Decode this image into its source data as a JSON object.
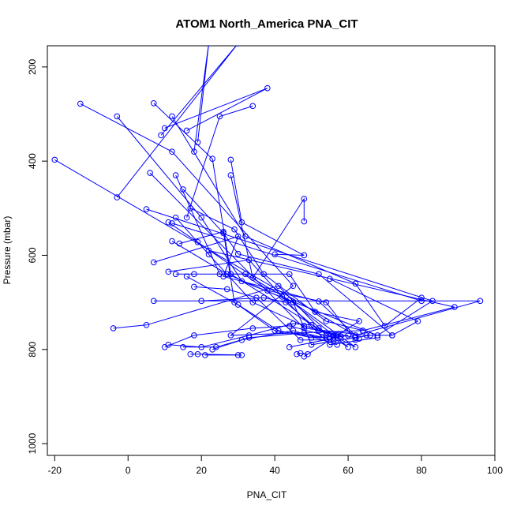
{
  "chart_data": {
    "type": "line",
    "title": "ATOM1 North_America PNA_CIT",
    "xlabel": "PNA_CIT",
    "ylabel": "Pressure (mbar)",
    "xlim": [
      -22,
      100
    ],
    "ylim": [
      1025,
      155
    ],
    "y_reversed": true,
    "xticks": [
      -20,
      0,
      20,
      40,
      60,
      80,
      100
    ],
    "yticks": [
      200,
      400,
      600,
      800,
      1000
    ],
    "grid": false,
    "series_color": "#0000ff",
    "marker": "open-circle",
    "series": [
      {
        "points": [
          [
            -20,
            397
          ],
          [
            62,
            770
          ],
          [
            96,
            697
          ],
          [
            7,
            697
          ],
          [
            80,
            697
          ],
          [
            12,
            532
          ]
        ]
      },
      {
        "points": [
          [
            -13,
            278
          ],
          [
            12,
            380
          ],
          [
            45,
            665
          ],
          [
            28,
            770
          ],
          [
            64,
            760
          ],
          [
            89,
            710
          ],
          [
            22,
            590
          ]
        ]
      },
      {
        "points": [
          [
            -3,
            305
          ],
          [
            20,
            520
          ],
          [
            31,
            655
          ],
          [
            68,
            770
          ],
          [
            83,
            697
          ],
          [
            5,
            502
          ]
        ]
      },
      {
        "points": [
          [
            -3,
            477
          ],
          [
            30,
            150
          ],
          [
            9,
            345
          ]
        ]
      },
      {
        "points": [
          [
            6,
            425
          ],
          [
            48,
            755
          ],
          [
            65,
            770
          ],
          [
            72,
            770
          ],
          [
            79,
            740
          ],
          [
            55,
            650
          ]
        ]
      },
      {
        "points": [
          [
            7,
            277
          ],
          [
            23,
            395
          ],
          [
            28,
            640
          ],
          [
            60,
            795
          ],
          [
            56,
            770
          ],
          [
            44,
            695
          ]
        ]
      },
      {
        "points": [
          [
            12,
            305
          ],
          [
            32,
            560
          ],
          [
            62,
            660
          ],
          [
            70,
            750
          ],
          [
            80,
            690
          ]
        ]
      },
      {
        "points": [
          [
            -4,
            755
          ],
          [
            5,
            748
          ],
          [
            41,
            665
          ],
          [
            54,
            770
          ],
          [
            60,
            770
          ],
          [
            44,
            795
          ]
        ]
      },
      {
        "points": [
          [
            16,
            335
          ],
          [
            38,
            245
          ],
          [
            10,
            330
          ]
        ]
      },
      {
        "points": [
          [
            18,
            380
          ],
          [
            22,
            150
          ],
          [
            19,
            360
          ]
        ]
      },
      {
        "points": [
          [
            28,
            397
          ],
          [
            31,
            530
          ],
          [
            48,
            600
          ],
          [
            40,
            598
          ]
        ]
      },
      {
        "points": [
          [
            28,
            430
          ],
          [
            34,
            648
          ],
          [
            48,
            480
          ],
          [
            48,
            528
          ]
        ]
      },
      {
        "points": [
          [
            13,
            430
          ],
          [
            25,
            640
          ],
          [
            44,
            640
          ],
          [
            51,
            720
          ],
          [
            63,
            740
          ],
          [
            48,
            815
          ]
        ]
      },
      {
        "points": [
          [
            34,
            283
          ],
          [
            25,
            305
          ],
          [
            16,
            520
          ]
        ]
      },
      {
        "points": [
          [
            15,
            460
          ],
          [
            26,
            553
          ],
          [
            30,
            597
          ],
          [
            52,
            640
          ],
          [
            72,
            770
          ]
        ]
      },
      {
        "points": [
          [
            17,
            500
          ],
          [
            29,
            545
          ],
          [
            37,
            640
          ],
          [
            54,
            740
          ],
          [
            64,
            760
          ]
        ]
      },
      {
        "points": [
          [
            11,
            530
          ],
          [
            19,
            572
          ],
          [
            38,
            675
          ],
          [
            54,
            700
          ],
          [
            62,
            780
          ]
        ]
      },
      {
        "points": [
          [
            13,
            520
          ],
          [
            22,
            598
          ],
          [
            34,
            700
          ],
          [
            48,
            750
          ],
          [
            57,
            770
          ]
        ]
      },
      {
        "points": [
          [
            12,
            570
          ],
          [
            27,
            640
          ],
          [
            45,
            700
          ],
          [
            50,
            790
          ],
          [
            66,
            770
          ]
        ]
      },
      {
        "points": [
          [
            7,
            615
          ],
          [
            30,
            560
          ],
          [
            26,
            645
          ],
          [
            52,
            698
          ],
          [
            63,
            777
          ]
        ]
      },
      {
        "points": [
          [
            11,
            635
          ],
          [
            33,
            610
          ],
          [
            42,
            688
          ],
          [
            55,
            790
          ],
          [
            68,
            775
          ]
        ]
      },
      {
        "points": [
          [
            13,
            640
          ],
          [
            18,
            640
          ],
          [
            32,
            640
          ],
          [
            45,
            700
          ],
          [
            62,
            795
          ],
          [
            52,
            755
          ]
        ]
      },
      {
        "points": [
          [
            18,
            667
          ],
          [
            27,
            672
          ],
          [
            35,
            690
          ],
          [
            47,
            780
          ],
          [
            56,
            780
          ]
        ]
      },
      {
        "points": [
          [
            14,
            575
          ],
          [
            26,
            550
          ],
          [
            29,
            700
          ],
          [
            40,
            760
          ],
          [
            53,
            775
          ]
        ]
      },
      {
        "points": [
          [
            16,
            645
          ],
          [
            30,
            705
          ],
          [
            41,
            760
          ],
          [
            50,
            775
          ],
          [
            58,
            772
          ]
        ]
      },
      {
        "points": [
          [
            20,
            697
          ],
          [
            37,
            690
          ],
          [
            43,
            700
          ],
          [
            52,
            760
          ],
          [
            62,
            775
          ]
        ]
      },
      {
        "points": [
          [
            10,
            795
          ],
          [
            18,
            770
          ],
          [
            34,
            755
          ],
          [
            44,
            750
          ],
          [
            56,
            775
          ]
        ]
      },
      {
        "points": [
          [
            11,
            790
          ],
          [
            20,
            795
          ],
          [
            33,
            770
          ],
          [
            45,
            745
          ],
          [
            50,
            748
          ]
        ]
      },
      {
        "points": [
          [
            15,
            795
          ],
          [
            24,
            795
          ],
          [
            33,
            775
          ],
          [
            48,
            765
          ],
          [
            55,
            778
          ]
        ]
      },
      {
        "points": [
          [
            17,
            810
          ],
          [
            19,
            810
          ],
          [
            31,
            812
          ]
        ]
      },
      {
        "points": [
          [
            21,
            812
          ],
          [
            30,
            812
          ]
        ]
      },
      {
        "points": [
          [
            46,
            810
          ],
          [
            47,
            808
          ],
          [
            49,
            810
          ]
        ]
      },
      {
        "points": [
          [
            23,
            800
          ],
          [
            31,
            780
          ],
          [
            45,
            760
          ],
          [
            57,
            790
          ]
        ]
      }
    ]
  }
}
